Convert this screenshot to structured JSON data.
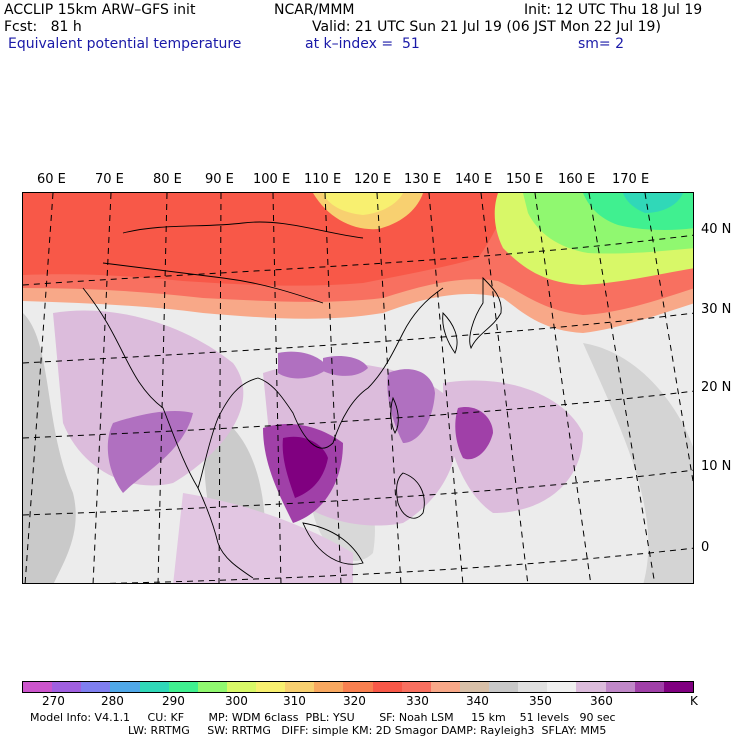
{
  "header": {
    "model": "ACCLIP 15km ARW–GFS init",
    "org": "NCAR/MMM",
    "init": "Init: 12 UTC Thu 18 Jul 19",
    "fcst": "Fcst:   81 h",
    "valid": "Valid: 21 UTC Sun 21 Jul 19 (06 JST Mon 22 Jul 19)",
    "field": "Equivalent potential temperature",
    "level": "at k–index =  51",
    "smooth": "sm= 2"
  },
  "longitude_labels": [
    "60 E",
    "70 E",
    "80 E",
    "90 E",
    "100 E",
    "110 E",
    "120 E",
    "130 E",
    "140 E",
    "150 E",
    "160 E",
    "170 E"
  ],
  "latitude_labels": [
    "40 N",
    "30 N",
    "20 N",
    "10 N",
    "0"
  ],
  "colorbar": {
    "unit": "K",
    "tick_labels": [
      "270",
      "280",
      "290",
      "300",
      "310",
      "320",
      "330",
      "340",
      "350",
      "360"
    ],
    "colors": [
      "#cc55cc",
      "#a060e0",
      "#7f7ff0",
      "#50a8e8",
      "#30d8b8",
      "#40f090",
      "#90f870",
      "#d8f868",
      "#f8f070",
      "#f8d070",
      "#f8a860",
      "#f88050",
      "#f85848",
      "#f87060",
      "#f8a888",
      "#d8c0a8",
      "#c8c8c8",
      "#e0e0e0",
      "#f0f0f0",
      "#dcbcdc",
      "#c088c8",
      "#a040a8",
      "#800080"
    ]
  },
  "model_info": {
    "line1": "Model Info: V4.1.1     CU: KF       MP: WDM 6class  PBL: YSU       SF: Noah LSM     15 km    51 levels   90 sec",
    "line2": "LW: RRTMG     SW: RRTMG   DIFF: simple KM: 2D Smagor DAMP: Rayleigh3  SFLAY: MM5"
  }
}
